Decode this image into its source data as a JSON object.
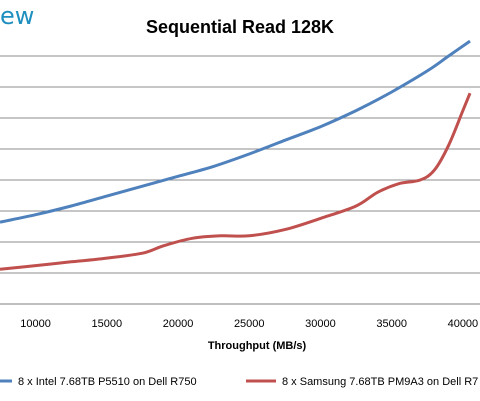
{
  "logo": {
    "text": "ew"
  },
  "chart_data": {
    "type": "line",
    "title": "Sequential Read 128K",
    "xlabel": "Throughput (MB/s)",
    "ylabel": "",
    "xlim": [
      7500,
      40500
    ],
    "ylim": [
      0,
      10
    ],
    "x_ticks": [
      10000,
      15000,
      20000,
      25000,
      30000,
      35000,
      40000
    ],
    "grid": "horizontal",
    "legend_position": "bottom",
    "series": [
      {
        "name": "8 x Intel 7.68TB P5510 on Dell R750",
        "color": "#4f81bd",
        "x": [
          7500,
          10000,
          12500,
          15000,
          17500,
          20000,
          22500,
          25000,
          27500,
          30000,
          32500,
          35000,
          37500,
          39000,
          40500
        ],
        "y": [
          3.3,
          3.6,
          3.95,
          4.35,
          4.75,
          5.15,
          5.55,
          6.05,
          6.6,
          7.15,
          7.8,
          8.55,
          9.4,
          10.0,
          10.6
        ]
      },
      {
        "name": "8 x Samsung 7.68TB PM9A3 on Dell R7",
        "color": "#c0504d",
        "x": [
          7500,
          10000,
          12500,
          15000,
          17500,
          19000,
          21000,
          23000,
          25000,
          27500,
          30000,
          32500,
          34000,
          35500,
          37000,
          38000,
          39000,
          40000,
          40500
        ],
        "y": [
          1.4,
          1.55,
          1.7,
          1.85,
          2.05,
          2.35,
          2.65,
          2.75,
          2.75,
          3.0,
          3.45,
          3.95,
          4.5,
          4.85,
          5.0,
          5.4,
          6.4,
          7.8,
          8.5
        ]
      }
    ]
  }
}
